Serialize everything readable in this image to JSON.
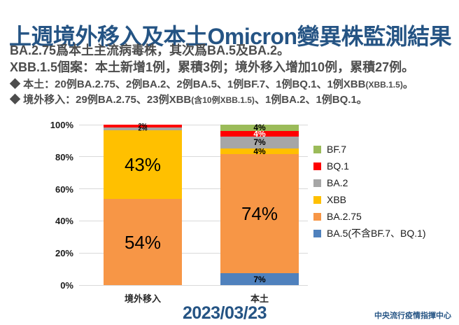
{
  "title": "上週境外移入及本土Omicron變異株監測結果",
  "summary": {
    "line1": "BA.2.75爲本土主流病毒株，其次爲BA.5及BA.2。",
    "line2": "XBB.1.5個案：本土新增1例，累積3例；境外移入增加10例，累積27例。"
  },
  "bullets": [
    {
      "runs": [
        {
          "t": "◆ 本土：20例BA.2.75、2例BA.2、2例BA.5、1例BF.7、1例BQ.1、1例XBB",
          "small": false
        },
        {
          "t": "(XBB.1.5)",
          "small": true
        },
        {
          "t": "。",
          "small": false
        }
      ]
    },
    {
      "runs": [
        {
          "t": "◆ 境外移入：29例BA.2.75、23例XBB",
          "small": false
        },
        {
          "t": "(含10例XBB.1.5)",
          "small": true
        },
        {
          "t": "、1例BA.2、1例BQ.1。",
          "small": false
        }
      ]
    }
  ],
  "chart_data": {
    "type": "bar",
    "subtype": "stacked-100-percent",
    "title": "",
    "xlabel": "",
    "ylabel": "",
    "categories": [
      "境外移入",
      "本土"
    ],
    "series": [
      {
        "name": "BA.5(不含BF.7、BQ.1)",
        "color": "#4F81BD",
        "values": [
          0,
          7.4
        ],
        "labels": [
          "",
          "7%"
        ],
        "label_colors": [
          null,
          "#000000"
        ]
      },
      {
        "name": "BA.2.75",
        "color": "#F79646",
        "values": [
          53.7,
          74.1
        ],
        "labels": [
          "54%",
          "74%"
        ],
        "label_colors": [
          "#000000",
          "#000000"
        ]
      },
      {
        "name": "XBB",
        "color": "#FFC000",
        "values": [
          42.6,
          3.7
        ],
        "labels": [
          "43%",
          "4%"
        ],
        "label_colors": [
          "#000000",
          "#000000"
        ]
      },
      {
        "name": "BA.2",
        "color": "#A6A6A6",
        "values": [
          1.85,
          7.4
        ],
        "labels": [
          "2%",
          "7%"
        ],
        "label_colors": [
          "#000000",
          "#000000"
        ]
      },
      {
        "name": "BQ.1",
        "color": "#FF0000",
        "values": [
          1.85,
          3.7
        ],
        "labels": [
          "2%",
          "4%"
        ],
        "label_colors": [
          "#000000",
          "#FFFFFF"
        ]
      },
      {
        "name": "BF.7",
        "color": "#9BBB59",
        "values": [
          0,
          3.7
        ],
        "labels": [
          "",
          "4%"
        ],
        "label_colors": [
          null,
          "#000000"
        ]
      }
    ],
    "legend_order_top_to_bottom": [
      "BF.7",
      "BQ.1",
      "BA.2",
      "XBB",
      "BA.2.75",
      "BA.5(不含BF.7、BQ.1)"
    ],
    "legend_position": "right",
    "y_ticks": [
      "0%",
      "20%",
      "40%",
      "60%",
      "80%",
      "100%"
    ],
    "ylim": [
      0,
      100
    ],
    "grid": true
  },
  "date_label": "2023/03/23",
  "footer": "中央流行疫情指揮中心",
  "colors": {
    "title_blue": "#255484",
    "body_text": "#4D4D4D",
    "grid": "#D9D9D9"
  }
}
